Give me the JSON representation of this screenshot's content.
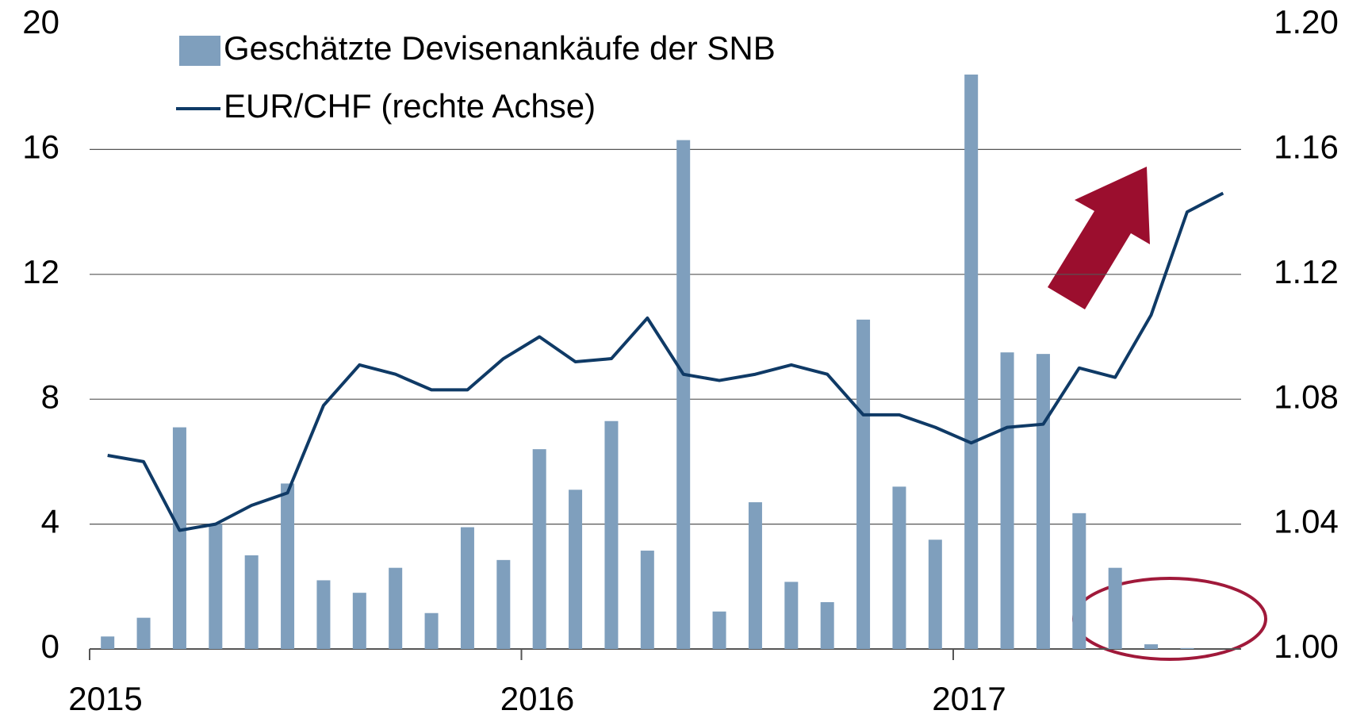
{
  "chart_data": {
    "type": "bar_line",
    "categories": [
      null,
      null,
      null,
      null,
      null,
      null,
      null,
      null,
      null,
      null,
      null,
      null,
      null,
      null,
      null,
      null,
      null,
      null,
      null,
      null,
      null,
      null,
      null,
      null,
      null,
      null,
      null,
      null,
      null,
      null,
      null,
      null
    ],
    "xlim": [
      0,
      32
    ],
    "xticks": [
      {
        "value": 0,
        "label": "2015"
      },
      {
        "value": 12,
        "label": "2016"
      },
      {
        "value": 24,
        "label": "2017"
      }
    ],
    "series": [
      {
        "name": "Geschätzte Devisenankäufe der SNB",
        "color": "#7f9fbd",
        "type": "bar",
        "values": [
          0.4,
          1.0,
          7.1,
          4.0,
          3.0,
          5.3,
          2.2,
          1.8,
          2.6,
          1.15,
          3.9,
          2.85,
          6.4,
          5.1,
          7.3,
          3.15,
          16.3,
          1.2,
          4.7,
          2.15,
          1.5,
          10.55,
          5.2,
          3.5,
          18.4,
          9.5,
          9.45,
          4.35,
          2.6,
          0.15,
          0.03,
          null
        ]
      },
      {
        "name": "EUR/CHF (rechte Achse)",
        "color": "#0f3a66",
        "type": "line",
        "axis": "y2",
        "values": [
          1.062,
          1.06,
          1.038,
          1.04,
          1.046,
          1.05,
          1.078,
          1.091,
          1.088,
          1.083,
          1.083,
          1.093,
          1.1,
          1.092,
          1.093,
          1.106,
          1.088,
          1.086,
          1.088,
          1.091,
          1.088,
          1.075,
          1.075,
          1.071,
          1.066,
          1.071,
          1.072,
          1.09,
          1.087,
          1.107,
          1.14,
          1.146
        ]
      }
    ],
    "ylim": [
      0,
      20
    ],
    "yticks": [
      0,
      4,
      8,
      12,
      16,
      20
    ],
    "y2lim": [
      1.0,
      1.2
    ],
    "y2ticks": [
      {
        "value": 1.0,
        "label": "1.00"
      },
      {
        "value": 1.04,
        "label": "1.04"
      },
      {
        "value": 1.08,
        "label": "1.08"
      },
      {
        "value": 1.12,
        "label": "1.12"
      },
      {
        "value": 1.16,
        "label": "1.16"
      },
      {
        "value": 1.2,
        "label": "1.20"
      }
    ],
    "grid": true,
    "legend": "upper left"
  }
}
